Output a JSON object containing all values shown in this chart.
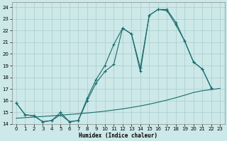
{
  "xlabel": "Humidex (Indice chaleur)",
  "bg_color": "#cce8e8",
  "grid_color": "#aacccc",
  "line_color": "#1a6b6b",
  "xlim": [
    -0.5,
    23.5
  ],
  "ylim": [
    14.0,
    24.4
  ],
  "xticks": [
    0,
    1,
    2,
    3,
    4,
    5,
    6,
    7,
    8,
    9,
    10,
    11,
    12,
    13,
    14,
    15,
    16,
    17,
    18,
    19,
    20,
    21,
    22,
    23
  ],
  "yticks": [
    14,
    15,
    16,
    17,
    18,
    19,
    20,
    21,
    22,
    23,
    24
  ],
  "line1_x": [
    0,
    1,
    2,
    3,
    4,
    5,
    6,
    7,
    8,
    9,
    10,
    11,
    12,
    13,
    14,
    15,
    16,
    17,
    18,
    19,
    20,
    21,
    22
  ],
  "line1_y": [
    15.8,
    14.8,
    14.7,
    14.2,
    14.3,
    14.8,
    14.2,
    14.3,
    16.0,
    17.5,
    18.5,
    19.1,
    22.2,
    21.7,
    18.5,
    23.3,
    23.8,
    23.8,
    22.7,
    21.1,
    19.3,
    18.7,
    17.1
  ],
  "line2_x": [
    0,
    1,
    2,
    3,
    4,
    5,
    6,
    7,
    8,
    9,
    10,
    11,
    12,
    13,
    14,
    15,
    16,
    17,
    18,
    19,
    20,
    21,
    22
  ],
  "line2_y": [
    15.8,
    14.8,
    14.7,
    14.2,
    14.3,
    15.0,
    14.2,
    14.3,
    16.2,
    17.8,
    19.0,
    20.8,
    22.2,
    21.7,
    18.8,
    23.3,
    23.8,
    23.7,
    22.5,
    21.1,
    19.3,
    18.7,
    17.1
  ],
  "line3_x": [
    0,
    1,
    2,
    3,
    4,
    5,
    6,
    7,
    8,
    9,
    10,
    11,
    12,
    13,
    14,
    15,
    16,
    17,
    18,
    19,
    20,
    21,
    22,
    23
  ],
  "line3_y": [
    14.5,
    14.55,
    14.6,
    14.65,
    14.7,
    14.76,
    14.82,
    14.88,
    14.95,
    15.02,
    15.1,
    15.2,
    15.3,
    15.42,
    15.55,
    15.7,
    15.87,
    16.05,
    16.25,
    16.47,
    16.7,
    16.85,
    16.95,
    17.05
  ]
}
